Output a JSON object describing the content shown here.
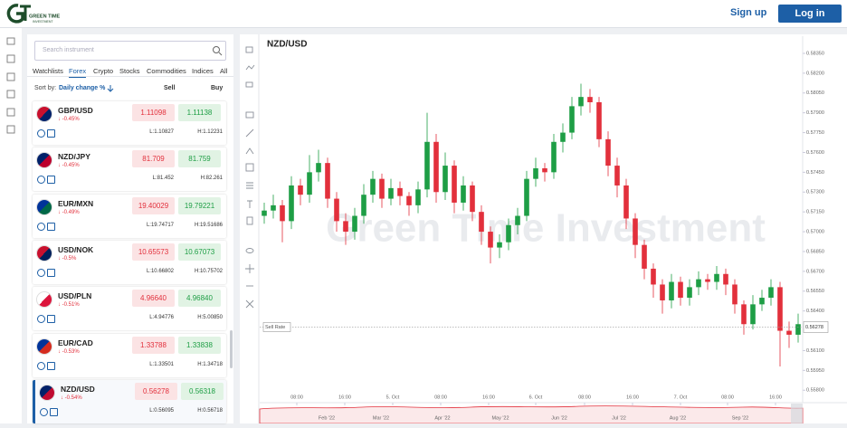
{
  "header": {
    "logo_line1": "GREEN TIME",
    "logo_line2": "INVESTMENT",
    "sign_up": "Sign up",
    "log_in": "Log in"
  },
  "search_placeholder": "Search instrument",
  "tabs": [
    "Watchlists",
    "Forex",
    "Crypto",
    "Stocks",
    "Commodities",
    "Indices",
    "All"
  ],
  "sort": {
    "label": "Sort by:",
    "field": "Daily change %",
    "sell": "Sell",
    "buy": "Buy"
  },
  "instruments": [
    {
      "symbol": "GBP/USD",
      "change": "↓ -0.45%",
      "sell": "1.11098",
      "buy": "1.11138",
      "low": "L:1.10827",
      "high": "H:1.12231"
    },
    {
      "symbol": "NZD/JPY",
      "change": "↓ -0.45%",
      "sell": "81.709",
      "buy": "81.759",
      "low": "L:81.452",
      "high": "H:82.261"
    },
    {
      "symbol": "EUR/MXN",
      "change": "↓ -0.49%",
      "sell": "19.40029",
      "buy": "19.79221",
      "low": "L:19.74717",
      "high": "H:19.51686"
    },
    {
      "symbol": "USD/NOK",
      "change": "↓ -0.5%",
      "sell": "10.65573",
      "buy": "10.67073",
      "low": "L:10.66802",
      "high": "H:10.75702"
    },
    {
      "symbol": "USD/PLN",
      "change": "↓ -0.51%",
      "sell": "4.96640",
      "buy": "4.96840",
      "low": "L:4.94776",
      "high": "H:5.00850"
    },
    {
      "symbol": "EUR/CAD",
      "change": "↓ -0.53%",
      "sell": "1.33788",
      "buy": "1.33838",
      "low": "L:1.33501",
      "high": "H:1.34718"
    },
    {
      "symbol": "NZD/USD",
      "change": "↓ -0.54%",
      "sell": "0.56278",
      "buy": "0.56318",
      "low": "L:0.56095",
      "high": "H:0.56718"
    }
  ],
  "chart_data": {
    "type": "candlestick",
    "title": "NZD/USD",
    "watermark": "Green Time Investment",
    "up_color": "#1e9e45",
    "down_color": "#e2303c",
    "candles": [
      [
        0.5712,
        0.5722,
        0.5706,
        0.5716
      ],
      [
        0.5716,
        0.5728,
        0.571,
        0.572
      ],
      [
        0.572,
        0.5724,
        0.5692,
        0.5708
      ],
      [
        0.5708,
        0.5742,
        0.5702,
        0.5735
      ],
      [
        0.5735,
        0.574,
        0.572,
        0.5728
      ],
      [
        0.5728,
        0.5758,
        0.5722,
        0.5745
      ],
      [
        0.5745,
        0.5762,
        0.5738,
        0.5752
      ],
      [
        0.5752,
        0.5756,
        0.5718,
        0.5725
      ],
      [
        0.5725,
        0.573,
        0.57,
        0.5708
      ],
      [
        0.5708,
        0.5714,
        0.569,
        0.57
      ],
      [
        0.57,
        0.5718,
        0.5694,
        0.5712
      ],
      [
        0.5712,
        0.5736,
        0.5706,
        0.5728
      ],
      [
        0.5728,
        0.5746,
        0.5722,
        0.574
      ],
      [
        0.574,
        0.5744,
        0.5718,
        0.5725
      ],
      [
        0.5725,
        0.574,
        0.572,
        0.5733
      ],
      [
        0.5733,
        0.5738,
        0.572,
        0.5727
      ],
      [
        0.5727,
        0.573,
        0.5712,
        0.572
      ],
      [
        0.572,
        0.5738,
        0.5714,
        0.5732
      ],
      [
        0.5732,
        0.579,
        0.5726,
        0.5768
      ],
      [
        0.5768,
        0.5774,
        0.5722,
        0.573
      ],
      [
        0.573,
        0.576,
        0.5724,
        0.575
      ],
      [
        0.575,
        0.5754,
        0.5714,
        0.5722
      ],
      [
        0.5722,
        0.5742,
        0.5716,
        0.5735
      ],
      [
        0.5735,
        0.5738,
        0.5708,
        0.5715
      ],
      [
        0.5715,
        0.572,
        0.569,
        0.57
      ],
      [
        0.57,
        0.5704,
        0.5676,
        0.5688
      ],
      [
        0.5688,
        0.5698,
        0.568,
        0.5692
      ],
      [
        0.5692,
        0.571,
        0.5686,
        0.5705
      ],
      [
        0.5705,
        0.5718,
        0.5698,
        0.5712
      ],
      [
        0.5712,
        0.5746,
        0.5708,
        0.574
      ],
      [
        0.574,
        0.5756,
        0.5734,
        0.5748
      ],
      [
        0.5748,
        0.5752,
        0.5738,
        0.5745
      ],
      [
        0.5745,
        0.5774,
        0.574,
        0.5768
      ],
      [
        0.5768,
        0.5782,
        0.576,
        0.5775
      ],
      [
        0.5775,
        0.5802,
        0.577,
        0.5795
      ],
      [
        0.5795,
        0.5812,
        0.5788,
        0.5802
      ],
      [
        0.5802,
        0.5808,
        0.579,
        0.5798
      ],
      [
        0.5798,
        0.5802,
        0.5764,
        0.577
      ],
      [
        0.577,
        0.5776,
        0.5742,
        0.575
      ],
      [
        0.575,
        0.5756,
        0.5726,
        0.5735
      ],
      [
        0.5735,
        0.574,
        0.5702,
        0.571
      ],
      [
        0.571,
        0.5714,
        0.568,
        0.569
      ],
      [
        0.569,
        0.5694,
        0.5664,
        0.5672
      ],
      [
        0.5672,
        0.5676,
        0.565,
        0.566
      ],
      [
        0.566,
        0.5664,
        0.5638,
        0.5648
      ],
      [
        0.5648,
        0.5668,
        0.5642,
        0.5662
      ],
      [
        0.5662,
        0.5666,
        0.5644,
        0.565
      ],
      [
        0.565,
        0.5664,
        0.5644,
        0.5658
      ],
      [
        0.5658,
        0.567,
        0.5652,
        0.5664
      ],
      [
        0.5664,
        0.5668,
        0.5656,
        0.5662
      ],
      [
        0.5662,
        0.5674,
        0.5656,
        0.5668
      ],
      [
        0.5668,
        0.5672,
        0.5652,
        0.566
      ],
      [
        0.566,
        0.5664,
        0.5638,
        0.5645
      ],
      [
        0.5645,
        0.5648,
        0.5622,
        0.563
      ],
      [
        0.563,
        0.5652,
        0.5626,
        0.5645
      ],
      [
        0.5645,
        0.5656,
        0.564,
        0.565
      ],
      [
        0.565,
        0.5664,
        0.5644,
        0.5658
      ],
      [
        0.5658,
        0.5662,
        0.5598,
        0.5625
      ],
      [
        0.5625,
        0.5632,
        0.5612,
        0.5622
      ],
      [
        0.5622,
        0.5638,
        0.5616,
        0.563
      ]
    ],
    "xlim": [
      -0.5,
      59.5
    ],
    "xticks": [
      {
        "value": 3.6,
        "label": "08:00"
      },
      {
        "value": 8.9,
        "label": "16:00"
      },
      {
        "value": 14.2,
        "label": "5. Oct"
      },
      {
        "value": 19.5,
        "label": "08:00"
      },
      {
        "value": 24.8,
        "label": "16:00"
      },
      {
        "value": 30,
        "label": "6. Oct"
      },
      {
        "value": 35.4,
        "label": "08:00"
      },
      {
        "value": 40.7,
        "label": "16:00"
      },
      {
        "value": 46,
        "label": "7. Oct"
      },
      {
        "value": 51.2,
        "label": "08:00"
      },
      {
        "value": 56.5,
        "label": "16:00"
      }
    ],
    "ylim": [
      0.5574,
      0.5848
    ],
    "yticks": [
      {
        "value": 0.5835,
        "label": "0.58350"
      },
      {
        "value": 0.582,
        "label": "0.58200"
      },
      {
        "value": 0.5805,
        "label": "0.58050"
      },
      {
        "value": 0.579,
        "label": "0.57900"
      },
      {
        "value": 0.5775,
        "label": "0.57750"
      },
      {
        "value": 0.576,
        "label": "0.57600"
      },
      {
        "value": 0.5745,
        "label": "0.57450"
      },
      {
        "value": 0.573,
        "label": "0.57300"
      },
      {
        "value": 0.5715,
        "label": "0.57150"
      },
      {
        "value": 0.57,
        "label": "0.57000"
      },
      {
        "value": 0.5685,
        "label": "0.56850"
      },
      {
        "value": 0.567,
        "label": "0.56700"
      },
      {
        "value": 0.5655,
        "label": "0.56550"
      },
      {
        "value": 0.564,
        "label": "0.56400"
      },
      {
        "value": 0.561,
        "label": "0.56100"
      },
      {
        "value": 0.5595,
        "label": "0.55950"
      },
      {
        "value": 0.558,
        "label": "0.55800"
      }
    ],
    "sell_rate": {
      "label": "Sell Rate",
      "value": 0.56278
    },
    "navigator_labels": [
      "Feb '22",
      "Mar '22",
      "Apr '22",
      "May '22",
      "Jun '22",
      "Jul '22",
      "Aug '22",
      "Sep '22"
    ]
  }
}
